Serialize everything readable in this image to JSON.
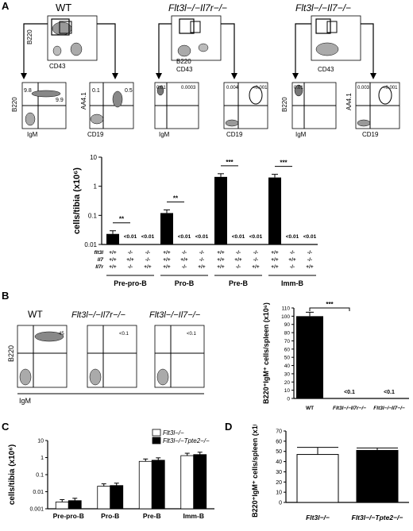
{
  "panel_letters": [
    "A",
    "B",
    "C",
    "D"
  ],
  "panelA": {
    "genotypes": [
      "WT",
      "Flt3l−/−Il7r−/−",
      "Flt3l−/−Il7−/−"
    ],
    "axis_labels": {
      "b220": "B220",
      "cd43": "CD43",
      "igm": "IgM",
      "cd19": "CD19",
      "aa41": "AA4.1"
    },
    "wt_values": [
      "9.8",
      "9.9",
      "0.1",
      "0.5"
    ],
    "il7r_values": [
      "0.01",
      "0.0003",
      "0.004",
      "<0.001"
    ],
    "il7_values": [
      "0.01",
      "0.003",
      "<0.001"
    ]
  },
  "chart_data": [
    {
      "id": "A",
      "type": "bar",
      "ylabel": "cells/tibia (x10⁶)",
      "yscale": "log",
      "ylim": [
        0.01,
        10
      ],
      "yticks": [
        "0.01",
        "0.1",
        "1",
        "10"
      ],
      "groups": [
        "Pre-pro-B",
        "Pro-B",
        "Pre-B",
        "Imm-B"
      ],
      "row_labels": [
        "flt3l",
        "Il7",
        "Il7r"
      ],
      "genotype_columns": [
        [
          "+/+",
          "+/+",
          "+/+"
        ],
        [
          "-/-",
          "+/+",
          "-/-"
        ],
        [
          "-/-",
          "-/-",
          "+/+"
        ]
      ],
      "values": [
        [
          0.023,
          null,
          null
        ],
        [
          0.12,
          null,
          null
        ],
        [
          2.1,
          null,
          null
        ],
        [
          2.0,
          null,
          null
        ]
      ],
      "below_detection_label": "<0.01",
      "significance": [
        "**",
        "**",
        "***",
        "***"
      ]
    },
    {
      "id": "B",
      "type": "bar",
      "ylabel": "B220⁺IgM⁺ cells/spleen (x10⁶)",
      "ylim": [
        0,
        110
      ],
      "yticks": [
        "0",
        "10",
        "20",
        "30",
        "40",
        "50",
        "60",
        "70",
        "80",
        "90",
        "100",
        "110"
      ],
      "categories": [
        "WT",
        "Flt3l−/−Il7r−/−",
        "Flt3l−/−Il7−/−"
      ],
      "values": [
        100,
        null,
        null
      ],
      "labels": [
        "",
        "<0.1",
        "<0.1"
      ],
      "significance": "***"
    },
    {
      "id": "C",
      "type": "bar",
      "ylabel": "cells/tibia (x10⁶)",
      "yscale": "log",
      "ylim": [
        0.001,
        10
      ],
      "yticks": [
        "0.001",
        "0.01",
        "0.1",
        "1",
        "10"
      ],
      "categories": [
        "Pre-pro-B",
        "Pro-B",
        "Pre-B",
        "Imm-B"
      ],
      "series": [
        {
          "name": "Flt3l−/−",
          "color": "#ffffff",
          "values": [
            0.0025,
            0.021,
            0.6,
            1.3
          ]
        },
        {
          "name": "Flt3l−/−Tpte2−/−",
          "color": "#000000",
          "values": [
            0.003,
            0.023,
            0.7,
            1.5
          ]
        }
      ]
    },
    {
      "id": "D",
      "type": "bar",
      "ylabel": "B220⁺IgM⁺ cells/spleen (x10⁶)",
      "ylim": [
        0,
        70
      ],
      "yticks": [
        "0",
        "10",
        "20",
        "30",
        "40",
        "50",
        "60",
        "70"
      ],
      "categories": [
        "Flt3l−/−",
        "Flt3l−/−Tpte2−/−"
      ],
      "values": [
        47,
        51
      ],
      "colors": [
        "#ffffff",
        "#000000"
      ]
    }
  ],
  "panelB_flow": {
    "genotypes": [
      "WT",
      "Flt3l−/−Il7r−/−",
      "Flt3l−/−Il7−/−"
    ],
    "values": [
      "45",
      "<0.1",
      "<0.1"
    ],
    "xlabel": "IgM",
    "ylabel": "B220"
  }
}
